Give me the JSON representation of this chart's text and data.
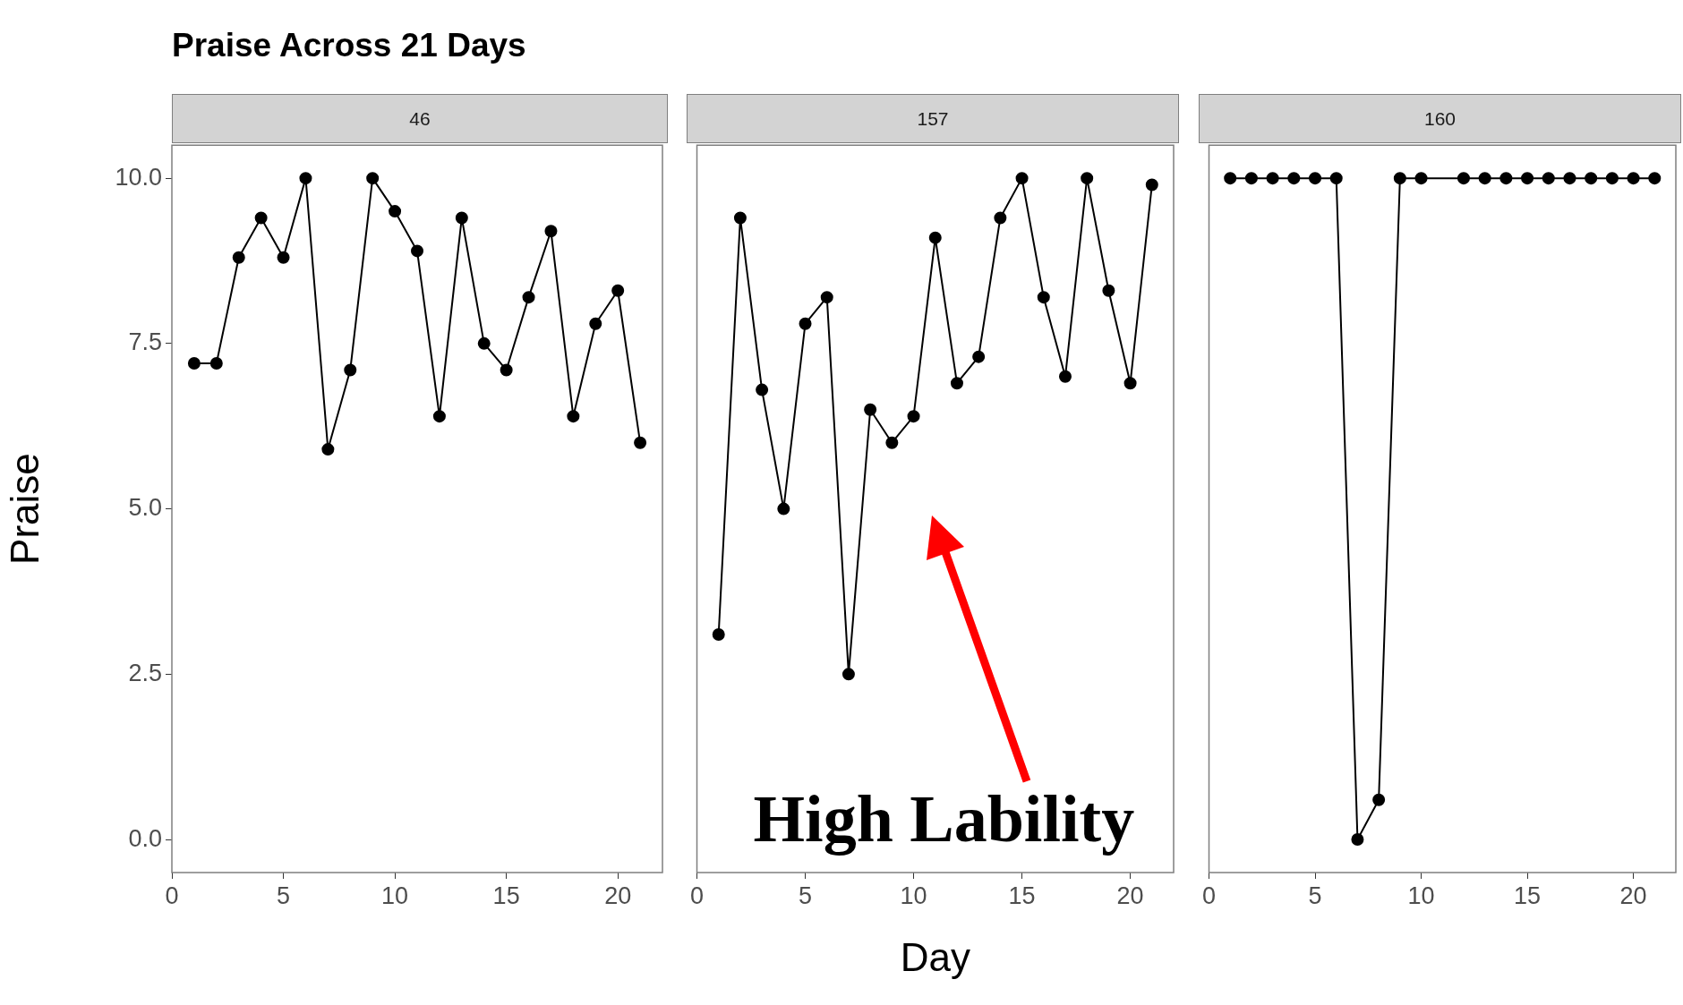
{
  "chart_data": [
    {
      "type": "line",
      "title": "Praise Across 21 Days",
      "subtitle": "46",
      "ylabel": "Praise",
      "x": [
        1,
        2,
        3,
        4,
        5,
        6,
        7,
        8,
        9,
        10,
        11,
        12,
        13,
        14,
        15,
        16,
        17,
        18,
        19,
        20,
        21
      ],
      "series": [
        {
          "color": "#000000",
          "values": [
            7.2,
            7.2,
            8.8,
            9.4,
            8.8,
            10,
            5.9,
            7.1,
            10,
            9.5,
            8.9,
            6.4,
            9.4,
            7.5,
            7.1,
            8.2,
            9.2,
            6.4,
            7.8,
            8.3,
            6.0
          ]
        }
      ],
      "xlim": [
        0,
        22
      ],
      "xticks": [
        0,
        5,
        10,
        15,
        20
      ],
      "ylim": [
        -0.5,
        10.5
      ],
      "yticks": [
        {
          "value": 0,
          "label": "0.0"
        },
        {
          "value": 2.5,
          "label": "2.5"
        },
        {
          "value": 5,
          "label": "5.0"
        },
        {
          "value": 7.5,
          "label": "7.5"
        },
        {
          "value": 10,
          "label": "10.0"
        }
      ],
      "grid": false,
      "legend": false,
      "marker": "circle",
      "line_style": "solid"
    },
    {
      "type": "line",
      "subtitle": "157",
      "xlabel": "Day",
      "x": [
        1,
        2,
        3,
        4,
        5,
        6,
        7,
        8,
        9,
        10,
        11,
        12,
        13,
        14,
        15,
        16,
        17,
        18,
        19,
        20,
        21
      ],
      "series": [
        {
          "color": "#000000",
          "values": [
            3.1,
            9.4,
            6.8,
            5.0,
            7.8,
            8.2,
            2.5,
            6.5,
            6.0,
            6.4,
            9.1,
            6.9,
            7.3,
            9.4,
            10,
            8.2,
            7.0,
            10,
            8.3,
            6.9,
            9.9
          ]
        }
      ],
      "xlim": [
        0,
        22
      ],
      "xticks": [
        0,
        5,
        10,
        15,
        20
      ],
      "ylim": [
        -0.5,
        10.5
      ],
      "tick_labels": "x",
      "grid": false,
      "legend": false,
      "marker": "circle",
      "line_style": "solid",
      "annotations": [
        "High Lability"
      ]
    },
    {
      "type": "line",
      "subtitle": "160",
      "x": [
        1,
        2,
        3,
        4,
        5,
        6,
        7,
        8,
        9,
        10,
        11,
        12,
        13,
        14,
        15,
        16,
        17,
        18,
        19,
        20,
        21
      ],
      "series": [
        {
          "color": "#000000",
          "values": [
            10,
            10,
            10,
            10,
            10,
            10,
            0,
            0.6,
            10,
            10,
            null,
            10,
            10,
            10,
            10,
            10,
            10,
            10,
            10,
            10,
            10
          ]
        }
      ],
      "xlim": [
        0,
        22
      ],
      "xticks": [
        0,
        5,
        10,
        15,
        20
      ],
      "ylim": [
        -0.5,
        10.5
      ],
      "tick_labels": "x",
      "grid": false,
      "legend": false,
      "marker": "circle",
      "line_style": "solid"
    }
  ]
}
